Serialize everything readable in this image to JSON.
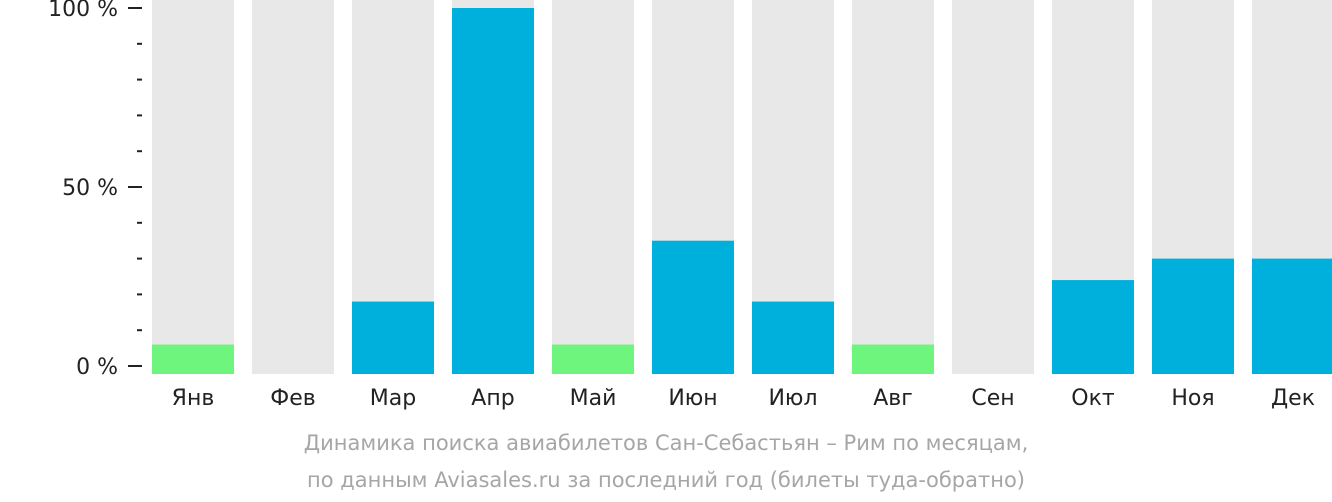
{
  "chart_data": {
    "type": "bar",
    "categories": [
      "Янв",
      "Фев",
      "Мар",
      "Апр",
      "Май",
      "Июн",
      "Июл",
      "Авг",
      "Сен",
      "Окт",
      "Ноя",
      "Дек"
    ],
    "values": [
      6,
      0,
      18,
      100,
      6,
      35,
      18,
      6,
      0,
      24,
      30,
      30
    ],
    "ylim": [
      0,
      100
    ],
    "ytick_labels": [
      {
        "value": 0,
        "label": "0 %"
      },
      {
        "value": 50,
        "label": "50 %"
      },
      {
        "value": 100,
        "label": "100 %"
      }
    ],
    "minor_tick_step": 10,
    "colors": {
      "background_bar": "#e8e8e8",
      "high": "#00b0dc",
      "low": "#6ef57e",
      "axis": "#222222"
    },
    "low_threshold": 10,
    "grid": false,
    "legend": "none"
  },
  "caption": {
    "line1": "Динамика поиска авиабилетов Сан-Себастьян – Рим по месяцам,",
    "line2": "по данным Aviasales.ru за последний год (билеты туда-обратно)"
  }
}
